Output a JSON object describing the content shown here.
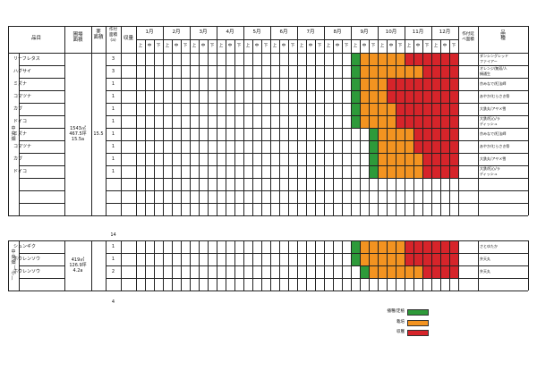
{
  "colors": {
    "sow": "#2e9a3a",
    "grow": "#f39320",
    "harvest": "#d6242a",
    "line": "#222222",
    "paper": "#ffffff"
  },
  "header": {
    "item": "品目",
    "field_area": "圃場\n面積",
    "actual_area": "実\n面積",
    "planted_area": "作付\n面積\n(a)",
    "harvest_count": "収量",
    "after_area": "作付延\nべ面積",
    "variety": "品\n種",
    "months": [
      "1月",
      "2月",
      "3月",
      "4月",
      "5月",
      "6月",
      "7月",
      "8月",
      "9月",
      "10月",
      "11月",
      "12月"
    ],
    "thirds": [
      "上",
      "中",
      "下"
    ]
  },
  "groups": [
    {
      "label": "中\n央\n畑",
      "field_area": "1543㎡\n467.5坪\n15.5a",
      "actual_area": "15.5",
      "total": "14",
      "rows": [
        {
          "item": "リーフレタス",
          "area": "3",
          "variety": "ダンシングレッド\nファイアー",
          "cells": [
            [
              24,
              "s"
            ],
            [
              25,
              "g"
            ],
            [
              26,
              "g"
            ],
            [
              27,
              "g"
            ],
            [
              28,
              "g"
            ],
            [
              29,
              "g"
            ],
            [
              30,
              "h"
            ],
            [
              31,
              "h"
            ],
            [
              32,
              "h"
            ],
            [
              33,
              "h"
            ],
            [
              34,
              "h"
            ],
            [
              35,
              "h"
            ]
          ],
          "span2": true
        },
        {
          "item": "ハグサイ",
          "area": "3",
          "variety": "オレンジ/無双/人\n絹通生",
          "cells": [
            [
              24,
              "s"
            ],
            [
              25,
              "g"
            ],
            [
              26,
              "g"
            ],
            [
              27,
              "g"
            ],
            [
              28,
              "g"
            ],
            [
              29,
              "g"
            ],
            [
              30,
              "g"
            ],
            [
              31,
              "g"
            ],
            [
              32,
              "h"
            ],
            [
              33,
              "h"
            ],
            [
              34,
              "h"
            ],
            [
              35,
              "h"
            ]
          ],
          "span2": true
        },
        {
          "item": "ミズナ",
          "area": "1",
          "variety": "京みなで/紅法師",
          "cells": [
            [
              24,
              "s"
            ],
            [
              25,
              "g"
            ],
            [
              26,
              "g"
            ],
            [
              27,
              "g"
            ],
            [
              28,
              "h"
            ],
            [
              29,
              "h"
            ],
            [
              30,
              "h"
            ],
            [
              31,
              "h"
            ],
            [
              32,
              "h"
            ],
            [
              33,
              "h"
            ],
            [
              34,
              "h"
            ],
            [
              35,
              "h"
            ]
          ]
        },
        {
          "item": "コマツナ",
          "area": "1",
          "variety": "あやか/むらさき祭",
          "cells": [
            [
              24,
              "s"
            ],
            [
              25,
              "g"
            ],
            [
              26,
              "g"
            ],
            [
              27,
              "g"
            ],
            [
              28,
              "h"
            ],
            [
              29,
              "h"
            ],
            [
              30,
              "h"
            ],
            [
              31,
              "h"
            ],
            [
              32,
              "h"
            ],
            [
              33,
              "h"
            ],
            [
              34,
              "h"
            ],
            [
              35,
              "h"
            ]
          ]
        },
        {
          "item": "カブ",
          "area": "1",
          "variety": "大鉄丸/アヤメ雪",
          "cells": [
            [
              24,
              "s"
            ],
            [
              25,
              "g"
            ],
            [
              26,
              "g"
            ],
            [
              27,
              "g"
            ],
            [
              28,
              "g"
            ],
            [
              29,
              "h"
            ],
            [
              30,
              "h"
            ],
            [
              31,
              "h"
            ],
            [
              32,
              "h"
            ],
            [
              33,
              "h"
            ],
            [
              34,
              "h"
            ],
            [
              35,
              "h"
            ]
          ]
        },
        {
          "item": "ドイコ",
          "area": "1",
          "variety": "大鉄/紅心/ラ\nディッシュ",
          "cells": [
            [
              24,
              "s"
            ],
            [
              25,
              "g"
            ],
            [
              26,
              "g"
            ],
            [
              27,
              "g"
            ],
            [
              28,
              "g"
            ],
            [
              29,
              "h"
            ],
            [
              30,
              "h"
            ],
            [
              31,
              "h"
            ],
            [
              32,
              "h"
            ],
            [
              33,
              "h"
            ],
            [
              34,
              "h"
            ],
            [
              35,
              "h"
            ]
          ]
        },
        {
          "item": "ミズナ",
          "area": "1",
          "variety": "京みなで/紅法師",
          "cells": [
            [
              26,
              "s"
            ],
            [
              27,
              "g"
            ],
            [
              28,
              "g"
            ],
            [
              29,
              "g"
            ],
            [
              30,
              "g"
            ],
            [
              31,
              "h"
            ],
            [
              32,
              "h"
            ],
            [
              33,
              "h"
            ],
            [
              34,
              "h"
            ],
            [
              35,
              "h"
            ]
          ]
        },
        {
          "item": "コマツナ",
          "area": "1",
          "variety": "あやか/むらさき祭",
          "cells": [
            [
              26,
              "s"
            ],
            [
              27,
              "g"
            ],
            [
              28,
              "g"
            ],
            [
              29,
              "g"
            ],
            [
              30,
              "g"
            ],
            [
              31,
              "h"
            ],
            [
              32,
              "h"
            ],
            [
              33,
              "h"
            ],
            [
              34,
              "h"
            ],
            [
              35,
              "h"
            ]
          ]
        },
        {
          "item": "カブ",
          "area": "1",
          "variety": "大鉄丸/アヤメ雪",
          "cells": [
            [
              26,
              "s"
            ],
            [
              27,
              "g"
            ],
            [
              28,
              "g"
            ],
            [
              29,
              "g"
            ],
            [
              30,
              "g"
            ],
            [
              31,
              "g"
            ],
            [
              32,
              "h"
            ],
            [
              33,
              "h"
            ],
            [
              34,
              "h"
            ],
            [
              35,
              "h"
            ]
          ]
        },
        {
          "item": "ドイコ",
          "area": "1",
          "variety": "大鉄/紅心/ラ\nディッシュ",
          "cells": [
            [
              26,
              "s"
            ],
            [
              27,
              "g"
            ],
            [
              28,
              "g"
            ],
            [
              29,
              "g"
            ],
            [
              30,
              "g"
            ],
            [
              31,
              "g"
            ],
            [
              32,
              "h"
            ],
            [
              33,
              "h"
            ],
            [
              34,
              "h"
            ],
            [
              35,
              "h"
            ]
          ]
        },
        {
          "item": "",
          "area": "",
          "variety": "",
          "cells": []
        },
        {
          "item": "",
          "area": "",
          "variety": "",
          "cells": []
        },
        {
          "item": "",
          "area": "",
          "variety": "",
          "cells": []
        }
      ]
    },
    {
      "label": "中\n央\n畑\n（\n小\n）",
      "field_area": "419㎡\n126.9坪\n4.2a",
      "actual_area": "",
      "total": "4",
      "rows": [
        {
          "item": "シュンギク",
          "area": "1",
          "variety": "さとゆたか",
          "cells": [
            [
              24,
              "s"
            ],
            [
              25,
              "g"
            ],
            [
              26,
              "g"
            ],
            [
              27,
              "g"
            ],
            [
              28,
              "g"
            ],
            [
              29,
              "g"
            ],
            [
              30,
              "h"
            ],
            [
              31,
              "h"
            ],
            [
              32,
              "h"
            ],
            [
              33,
              "h"
            ],
            [
              34,
              "h"
            ],
            [
              35,
              "h"
            ]
          ],
          "span2": true
        },
        {
          "item": "ホウレンソウ",
          "area": "1",
          "variety": "弁天丸",
          "cells": [
            [
              24,
              "s"
            ],
            [
              25,
              "g"
            ],
            [
              26,
              "g"
            ],
            [
              27,
              "g"
            ],
            [
              28,
              "g"
            ],
            [
              29,
              "g"
            ],
            [
              30,
              "h"
            ],
            [
              31,
              "h"
            ],
            [
              32,
              "h"
            ],
            [
              33,
              "h"
            ],
            [
              34,
              "h"
            ],
            [
              35,
              "h"
            ]
          ]
        },
        {
          "item": "ホウレンソウ",
          "area": "2",
          "variety": "弁天丸",
          "cells": [
            [
              25,
              "s"
            ],
            [
              26,
              "g"
            ],
            [
              27,
              "g"
            ],
            [
              28,
              "g"
            ],
            [
              29,
              "g"
            ],
            [
              30,
              "g"
            ],
            [
              31,
              "g"
            ],
            [
              32,
              "h"
            ],
            [
              33,
              "h"
            ],
            [
              34,
              "h"
            ],
            [
              35,
              "h"
            ]
          ]
        },
        {
          "item": "",
          "area": "",
          "variety": "",
          "cells": []
        }
      ]
    }
  ],
  "legend": [
    {
      "label": "播種/定植",
      "key": "sow"
    },
    {
      "label": "栽培",
      "key": "grow"
    },
    {
      "label": "収穫",
      "key": "harvest"
    }
  ]
}
